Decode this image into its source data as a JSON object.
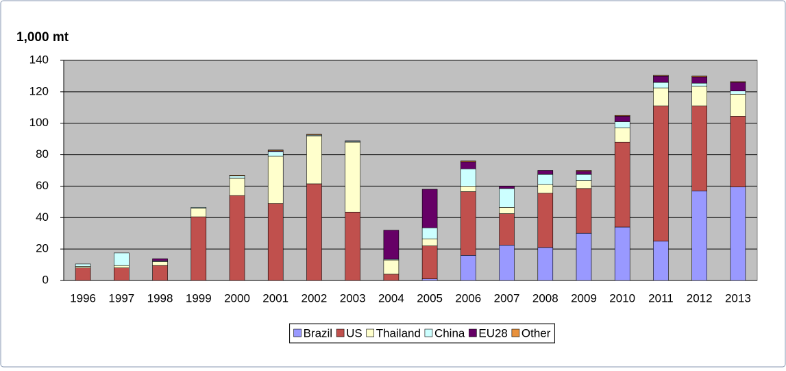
{
  "chart_data": {
    "type": "stacked_bar",
    "title": "1,000 mt",
    "categories": [
      "1996",
      "1997",
      "1998",
      "1999",
      "2000",
      "2001",
      "2002",
      "2003",
      "2004",
      "2005",
      "2006",
      "2007",
      "2008",
      "2009",
      "2010",
      "2011",
      "2012",
      "2013"
    ],
    "series": [
      {
        "name": "Brazil",
        "color": "#9999ff",
        "values": [
          0,
          0,
          0,
          0,
          0,
          0,
          0,
          0,
          0,
          1,
          16,
          22.5,
          21,
          30,
          34,
          25,
          57,
          59.5
        ]
      },
      {
        "name": "US",
        "color": "#c0504d",
        "values": [
          8,
          8,
          9.5,
          40.5,
          54,
          49,
          61.5,
          43.5,
          4,
          21,
          40.5,
          20,
          34.5,
          28.5,
          54,
          86,
          54,
          45
        ]
      },
      {
        "name": "Thailand",
        "color": "#ffffcc",
        "values": [
          1,
          1.5,
          2.5,
          5.5,
          11,
          30,
          30.5,
          44.5,
          9,
          4.5,
          3.5,
          4,
          5.5,
          5,
          9,
          11.5,
          12.5,
          14
        ]
      },
      {
        "name": "China",
        "color": "#ccffff",
        "values": [
          1.5,
          8,
          0.5,
          0.5,
          1.5,
          3,
          0.5,
          0.5,
          0.5,
          7,
          11,
          12,
          6.5,
          4,
          4,
          3.5,
          2,
          2
        ]
      },
      {
        "name": "EU28",
        "color": "#660066",
        "values": [
          0,
          0,
          1.3,
          0,
          0,
          0.5,
          0,
          0.3,
          18.5,
          24.5,
          4.5,
          1.5,
          2.5,
          2,
          3.5,
          4,
          4,
          5.5
        ]
      },
      {
        "name": "Other",
        "color": "#e8913c",
        "values": [
          0,
          0,
          0,
          0,
          0.5,
          0.5,
          0.5,
          0,
          0,
          0,
          0.5,
          0,
          0,
          0.5,
          0.5,
          0.5,
          0.5,
          0.5
        ]
      }
    ],
    "ylim": [
      0,
      140
    ],
    "yticks": [
      0,
      20,
      40,
      60,
      80,
      100,
      120,
      140
    ],
    "grid": true,
    "legend": "bottom"
  }
}
